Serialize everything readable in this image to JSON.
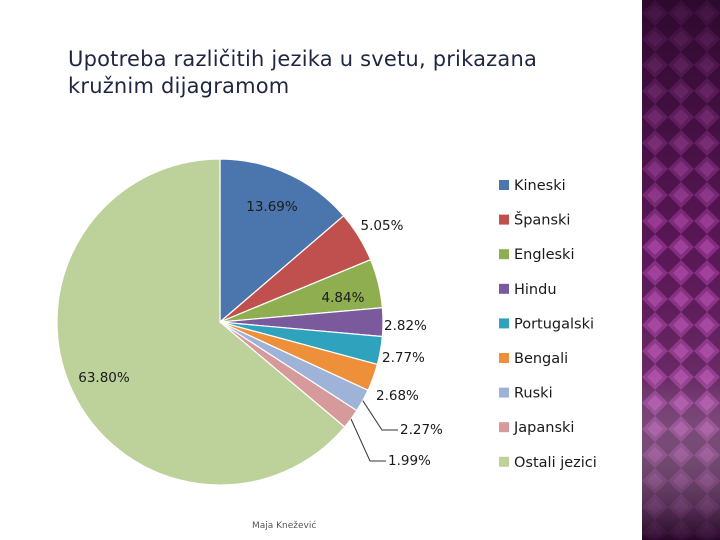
{
  "slide": {
    "title": "Upotreba različitih jezika u svetu, prikazana kružnim dijagramom",
    "footer": "Maja Knežević"
  },
  "colors": {
    "background": "#ffffff",
    "side_panel": "#6a1f66",
    "side_panel_dark": "#3b0a37",
    "side_panel_light": "#b24fb0"
  },
  "chart_data": {
    "type": "pie",
    "title": "",
    "legend_position": "right",
    "series": [
      {
        "name": "Kineski",
        "value": 13.69,
        "label": "13.69%",
        "color": "#4a76ad"
      },
      {
        "name": "Španski",
        "value": 5.05,
        "label": "5.05%",
        "color": "#c0504d"
      },
      {
        "name": "Engleski",
        "value": 4.84,
        "label": "4.84%",
        "color": "#8fae4f"
      },
      {
        "name": "Hindu",
        "value": 2.82,
        "label": "2.82%",
        "color": "#7a5a9c"
      },
      {
        "name": "Portugalski",
        "value": 2.77,
        "label": "2.77%",
        "color": "#2fa3bd"
      },
      {
        "name": "Bengali",
        "value": 2.68,
        "label": "2.68%",
        "color": "#ee8f3a"
      },
      {
        "name": "Ruski",
        "value": 2.27,
        "label": "2.27%",
        "color": "#9fb3d9"
      },
      {
        "name": "Japanski",
        "value": 1.99,
        "label": "1.99%",
        "color": "#d79a9a"
      },
      {
        "name": "Ostali jezici",
        "value": 63.8,
        "label": "63.80%",
        "color": "#bdd19a"
      }
    ]
  }
}
